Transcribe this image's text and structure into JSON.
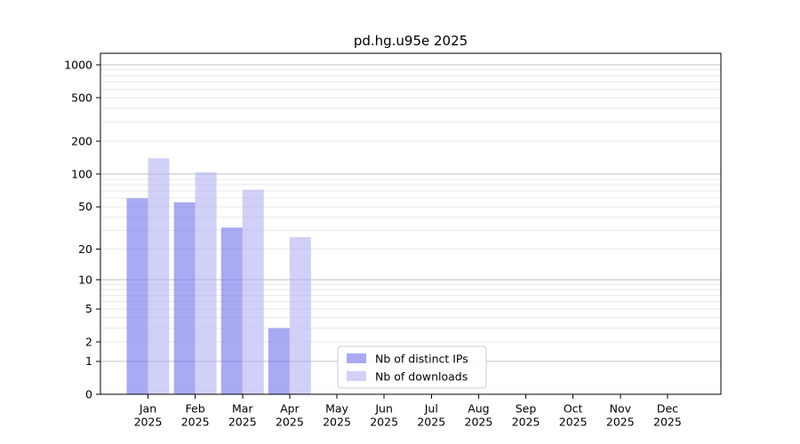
{
  "title": "pd.hg.u95e 2025",
  "colors": {
    "axis": "#000000",
    "text": "#000000",
    "grid_major": "#c0c0c0",
    "grid_minor": "#eaeaea",
    "legend_border": "#cccccc",
    "legend_background": "#ffffff",
    "distinct_ips": "#7070ec",
    "downloads": "#b3b3f1"
  },
  "legend": {
    "items": [
      {
        "key": "distinct-ips",
        "label": "Nb of distinct IPs",
        "color": "#7070ec"
      },
      {
        "key": "downloads",
        "label": "Nb of downloads",
        "color": "#b3b3f1"
      }
    ]
  },
  "chart_data": {
    "type": "bar",
    "title": "pd.hg.u95e 2025",
    "y_scale": "log1p",
    "year": "2025",
    "months": [
      "Jan",
      "Feb",
      "Mar",
      "Apr",
      "May",
      "Jun",
      "Jul",
      "Aug",
      "Sep",
      "Oct",
      "Nov",
      "Dec"
    ],
    "categories": [
      "Jan 2025",
      "Feb 2025",
      "Mar 2025",
      "Apr 2025",
      "May 2025",
      "Jun 2025",
      "Jul 2025",
      "Aug 2025",
      "Sep 2025",
      "Oct 2025",
      "Nov 2025",
      "Dec 2025"
    ],
    "series": [
      {
        "name": "Nb of distinct IPs",
        "key": "distinct-ips",
        "color": "#7070ec",
        "values": [
          60,
          55,
          32,
          3,
          0,
          0,
          0,
          0,
          0,
          0,
          0,
          0
        ]
      },
      {
        "name": "Nb of downloads",
        "key": "downloads",
        "color": "#b3b3f1",
        "values": [
          140,
          104,
          72,
          26,
          0,
          0,
          0,
          0,
          0,
          0,
          0,
          0
        ]
      }
    ],
    "bar_alpha": 0.6,
    "yticks": [
      1000,
      500,
      200,
      100,
      50,
      20,
      10,
      5,
      2,
      1,
      0
    ],
    "grid_major_values": [
      1,
      10,
      100,
      1000
    ],
    "grid_minor_values": [
      2,
      3,
      4,
      5,
      6,
      7,
      8,
      9,
      20,
      30,
      40,
      50,
      60,
      70,
      80,
      90,
      200,
      300,
      400,
      500,
      600,
      700,
      800,
      900
    ],
    "ylim": [
      0,
      1270
    ],
    "xlabel": "",
    "ylabel": "",
    "grid": true,
    "legend_position": "lower center inside"
  }
}
